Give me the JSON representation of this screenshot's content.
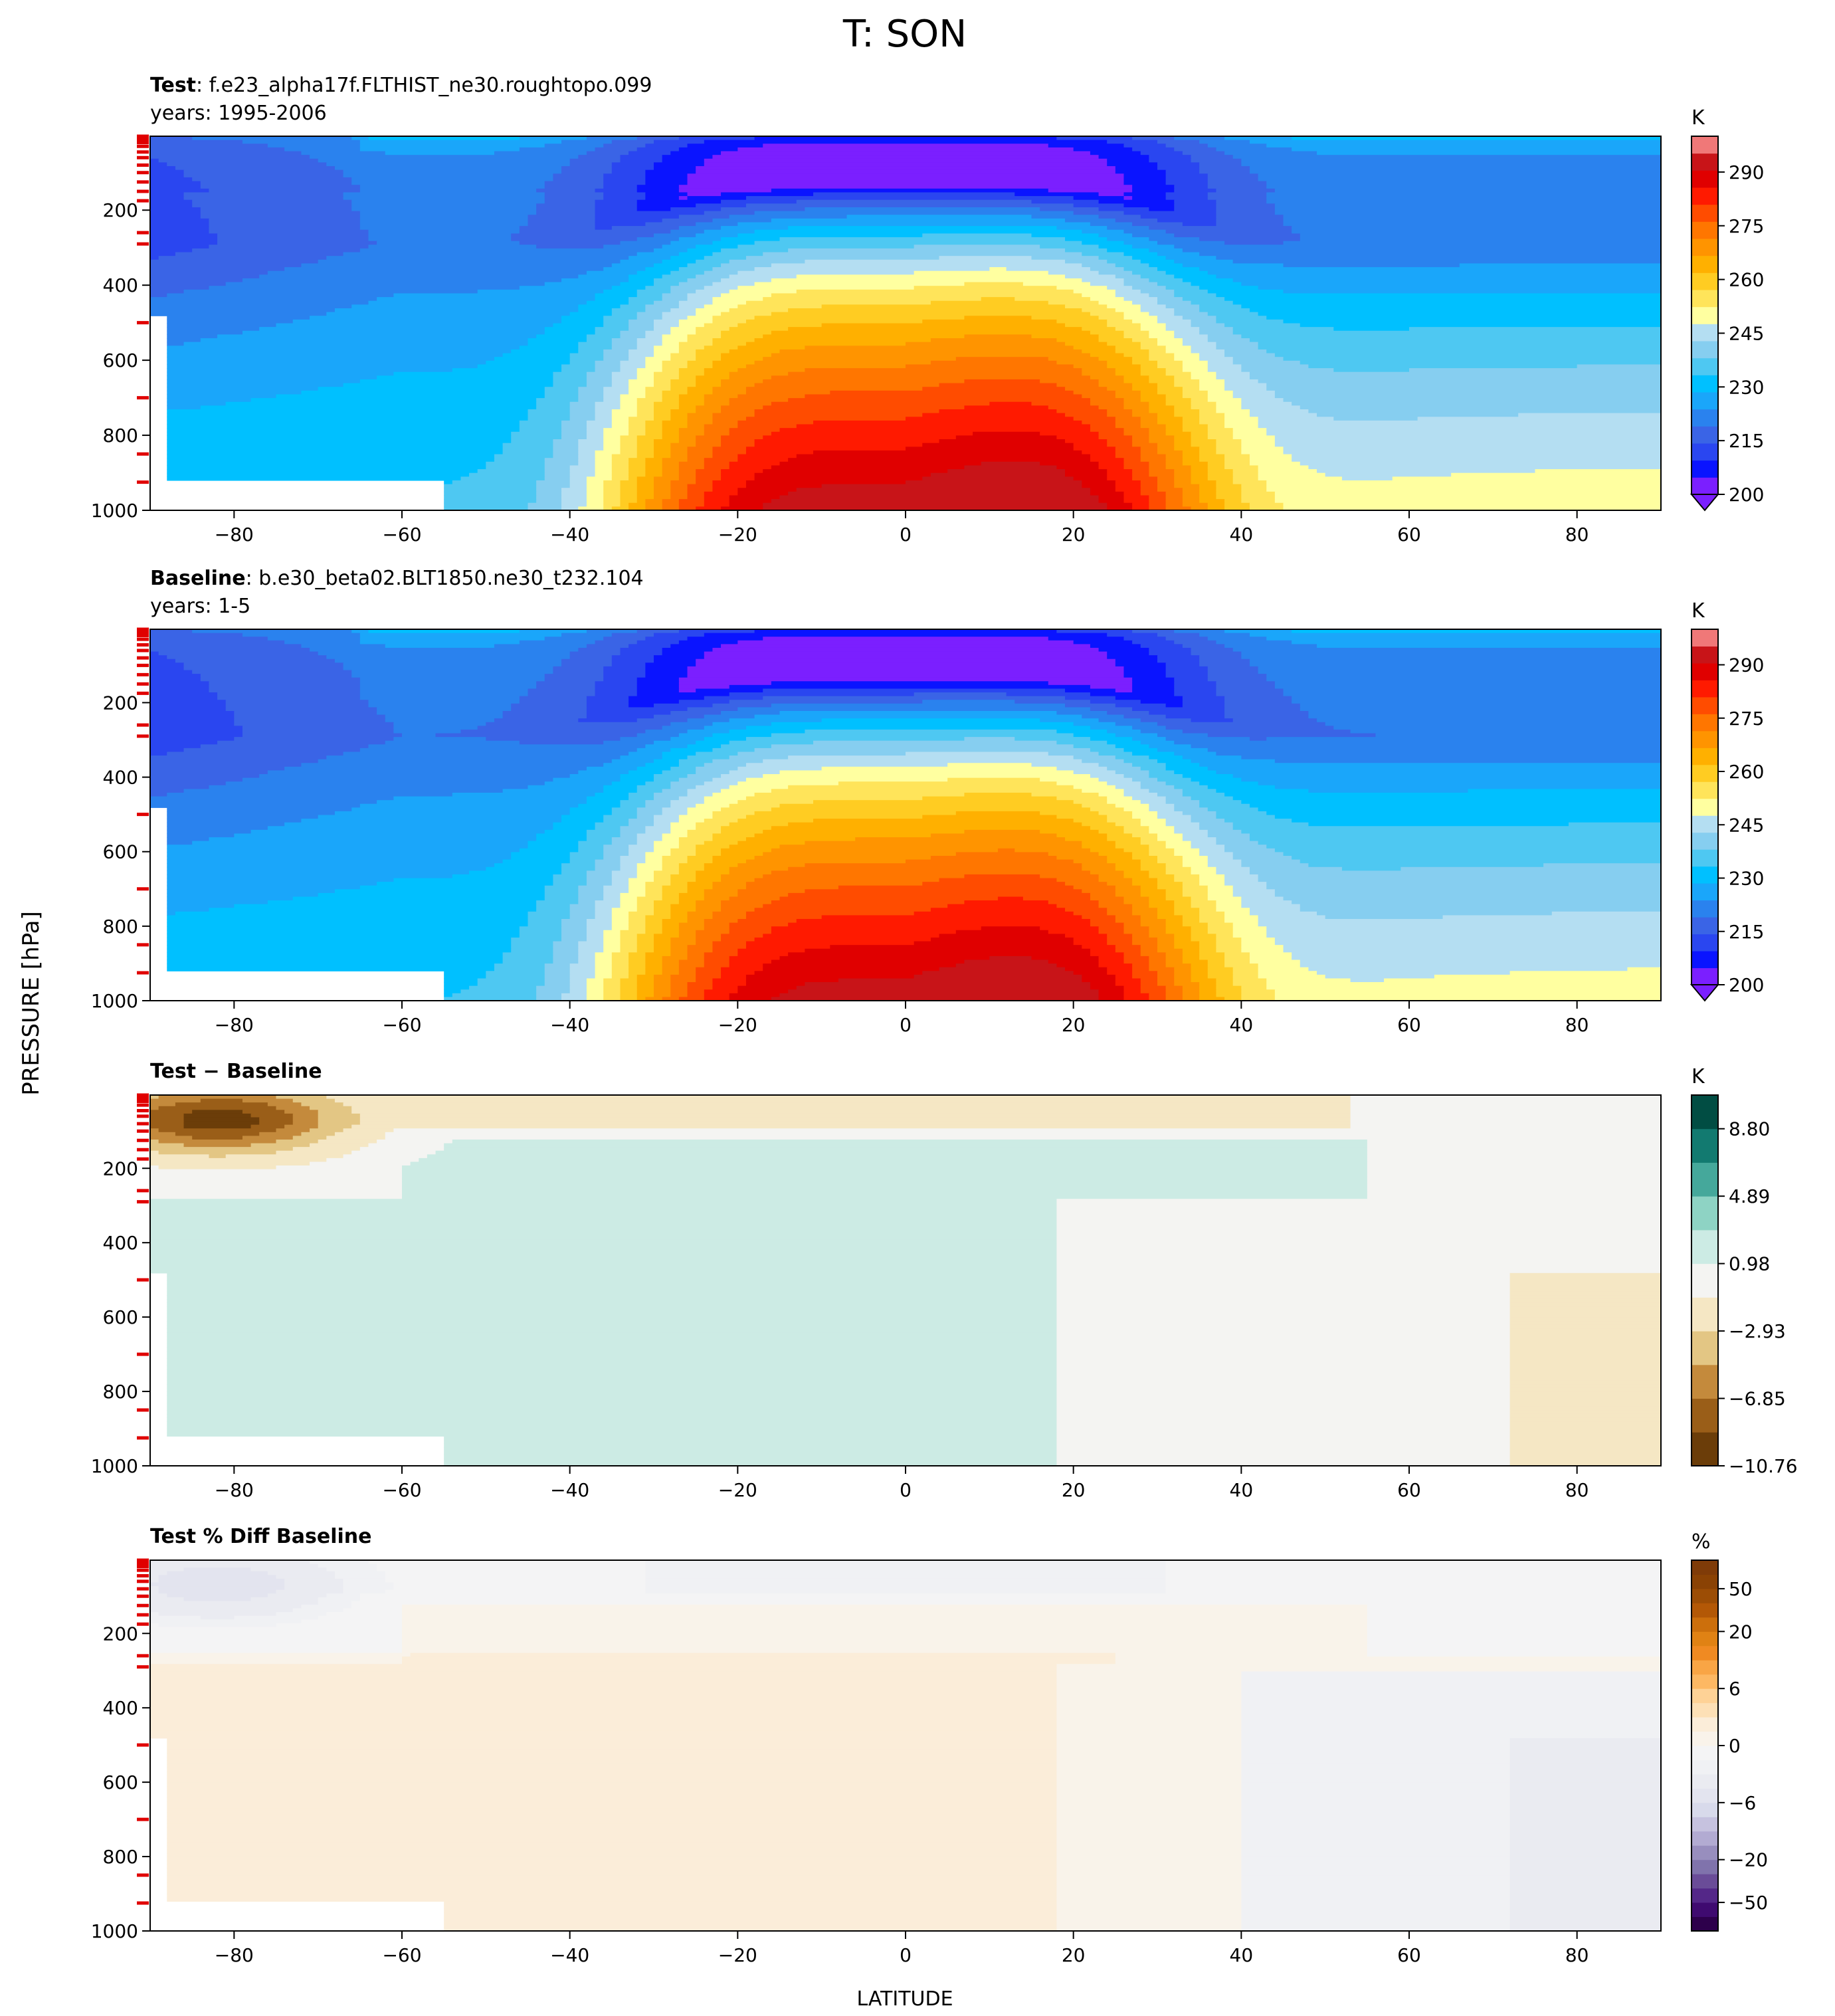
{
  "figure": {
    "title": "T: SON",
    "ylabel": "PRESSURE [hPa]",
    "xlabel": "LATITUDE"
  },
  "chart_data": [
    {
      "type": "contour",
      "title_bold": "Test",
      "title_rest": ": f.e23_alpha17f.FLTHIST_ne30.roughtopo.099",
      "subtitle": "years: 1995-2006",
      "xlim": [
        -90,
        90
      ],
      "ylim": [
        1000,
        3
      ],
      "xticks": [
        -80,
        -60,
        -40,
        -20,
        0,
        20,
        40,
        60,
        80
      ],
      "yticks": [
        200,
        400,
        600,
        800,
        1000
      ],
      "colorbar": {
        "unit": "K",
        "ticks": [
          200,
          215,
          230,
          245,
          260,
          275,
          290
        ],
        "levels": [
          200,
          205,
          210,
          215,
          220,
          225,
          230,
          235,
          240,
          245,
          250,
          255,
          260,
          265,
          270,
          275,
          280,
          285,
          290,
          295,
          300
        ],
        "colors": [
          "#7b1fff",
          "#0a14ff",
          "#2a46f0",
          "#3a64e6",
          "#2a82ee",
          "#1aa6fa",
          "#00c0ff",
          "#4ec8f2",
          "#86cef0",
          "#b4def2",
          "#ffffa0",
          "#ffe45a",
          "#ffcc22",
          "#ffb000",
          "#ff9400",
          "#ff7600",
          "#ff4c00",
          "#ff1a00",
          "#e00000",
          "#c81418",
          "#f07878"
        ],
        "extend": "min"
      },
      "field": "T_test"
    },
    {
      "type": "contour",
      "title_bold": "Baseline",
      "title_rest": ": b.e30_beta02.BLT1850.ne30_t232.104",
      "subtitle": "years: 1-5",
      "xlim": [
        -90,
        90
      ],
      "ylim": [
        1000,
        3
      ],
      "xticks": [
        -80,
        -60,
        -40,
        -20,
        0,
        20,
        40,
        60,
        80
      ],
      "yticks": [
        200,
        400,
        600,
        800,
        1000
      ],
      "colorbar": {
        "unit": "K",
        "ticks": [
          200,
          215,
          230,
          245,
          260,
          275,
          290
        ],
        "levels": [
          200,
          205,
          210,
          215,
          220,
          225,
          230,
          235,
          240,
          245,
          250,
          255,
          260,
          265,
          270,
          275,
          280,
          285,
          290,
          295,
          300
        ],
        "colors": [
          "#7b1fff",
          "#0a14ff",
          "#2a46f0",
          "#3a64e6",
          "#2a82ee",
          "#1aa6fa",
          "#00c0ff",
          "#4ec8f2",
          "#86cef0",
          "#b4def2",
          "#ffffa0",
          "#ffe45a",
          "#ffcc22",
          "#ffb000",
          "#ff9400",
          "#ff7600",
          "#ff4c00",
          "#ff1a00",
          "#e00000",
          "#c81418",
          "#f07878"
        ],
        "extend": "min"
      },
      "field": "T_base"
    },
    {
      "type": "contour",
      "title_bold": "Test − Baseline",
      "title_rest": "",
      "subtitle": "",
      "xlim": [
        -90,
        90
      ],
      "ylim": [
        1000,
        3
      ],
      "xticks": [
        -80,
        -60,
        -40,
        -20,
        0,
        20,
        40,
        60,
        80
      ],
      "yticks": [
        200,
        400,
        600,
        800,
        1000
      ],
      "colorbar": {
        "unit": "K",
        "ticks": [
          -10.76,
          -6.85,
          -2.93,
          0.98,
          4.89,
          8.8
        ],
        "tick_labels": [
          "−10.76",
          "−6.85",
          "−2.93",
          "0.98",
          "4.89",
          "8.80"
        ],
        "levels": [
          -10.76,
          -8.8,
          -6.85,
          -4.89,
          -2.93,
          -0.98,
          0.98,
          2.93,
          4.89,
          6.85,
          8.8,
          10.76
        ],
        "colors": [
          "#6b3d09",
          "#9a5e18",
          "#c48a3c",
          "#e3c684",
          "#f5e7c4",
          "#f4f4f2",
          "#ccebe4",
          "#8ed3c4",
          "#45a89b",
          "#127a70",
          "#014d43"
        ],
        "extend": "neither"
      },
      "field": "T_diff"
    },
    {
      "type": "contour",
      "title_bold": "Test % Diff Baseline",
      "title_rest": "",
      "subtitle": "",
      "xlim": [
        -90,
        90
      ],
      "ylim": [
        1000,
        3
      ],
      "xticks": [
        -80,
        -60,
        -40,
        -20,
        0,
        20,
        40,
        60,
        80
      ],
      "yticks": [
        200,
        400,
        600,
        800,
        1000
      ],
      "colorbar": {
        "unit": "%",
        "ticks": [
          -50,
          -20,
          -6,
          0,
          6,
          20,
          50
        ],
        "tick_labels": [
          "−50",
          "−20",
          "−6",
          "0",
          "6",
          "20",
          "50"
        ],
        "levels": [
          -100,
          -70,
          -50,
          -40,
          -30,
          -20,
          -15,
          -10,
          -8,
          -6,
          -4,
          -2,
          -1,
          0,
          1,
          2,
          4,
          6,
          8,
          10,
          15,
          20,
          30,
          40,
          50,
          70,
          100
        ],
        "colors": [
          "#2d004b",
          "#3f0a70",
          "#542788",
          "#6a4c98",
          "#8073ac",
          "#988ebe",
          "#b2abd2",
          "#c6c2df",
          "#d8daeb",
          "#e3e4ef",
          "#eaebf1",
          "#f0f1f4",
          "#f4f4f5",
          "#f9f3ea",
          "#fbedd9",
          "#fde0b6",
          "#fed296",
          "#fdb863",
          "#f9a545",
          "#f08a22",
          "#e08214",
          "#cc6f0c",
          "#b35806",
          "#9c4d05",
          "#8a4204",
          "#7f3b08"
        ],
        "extend": "neither"
      },
      "field": "T_pct"
    }
  ]
}
